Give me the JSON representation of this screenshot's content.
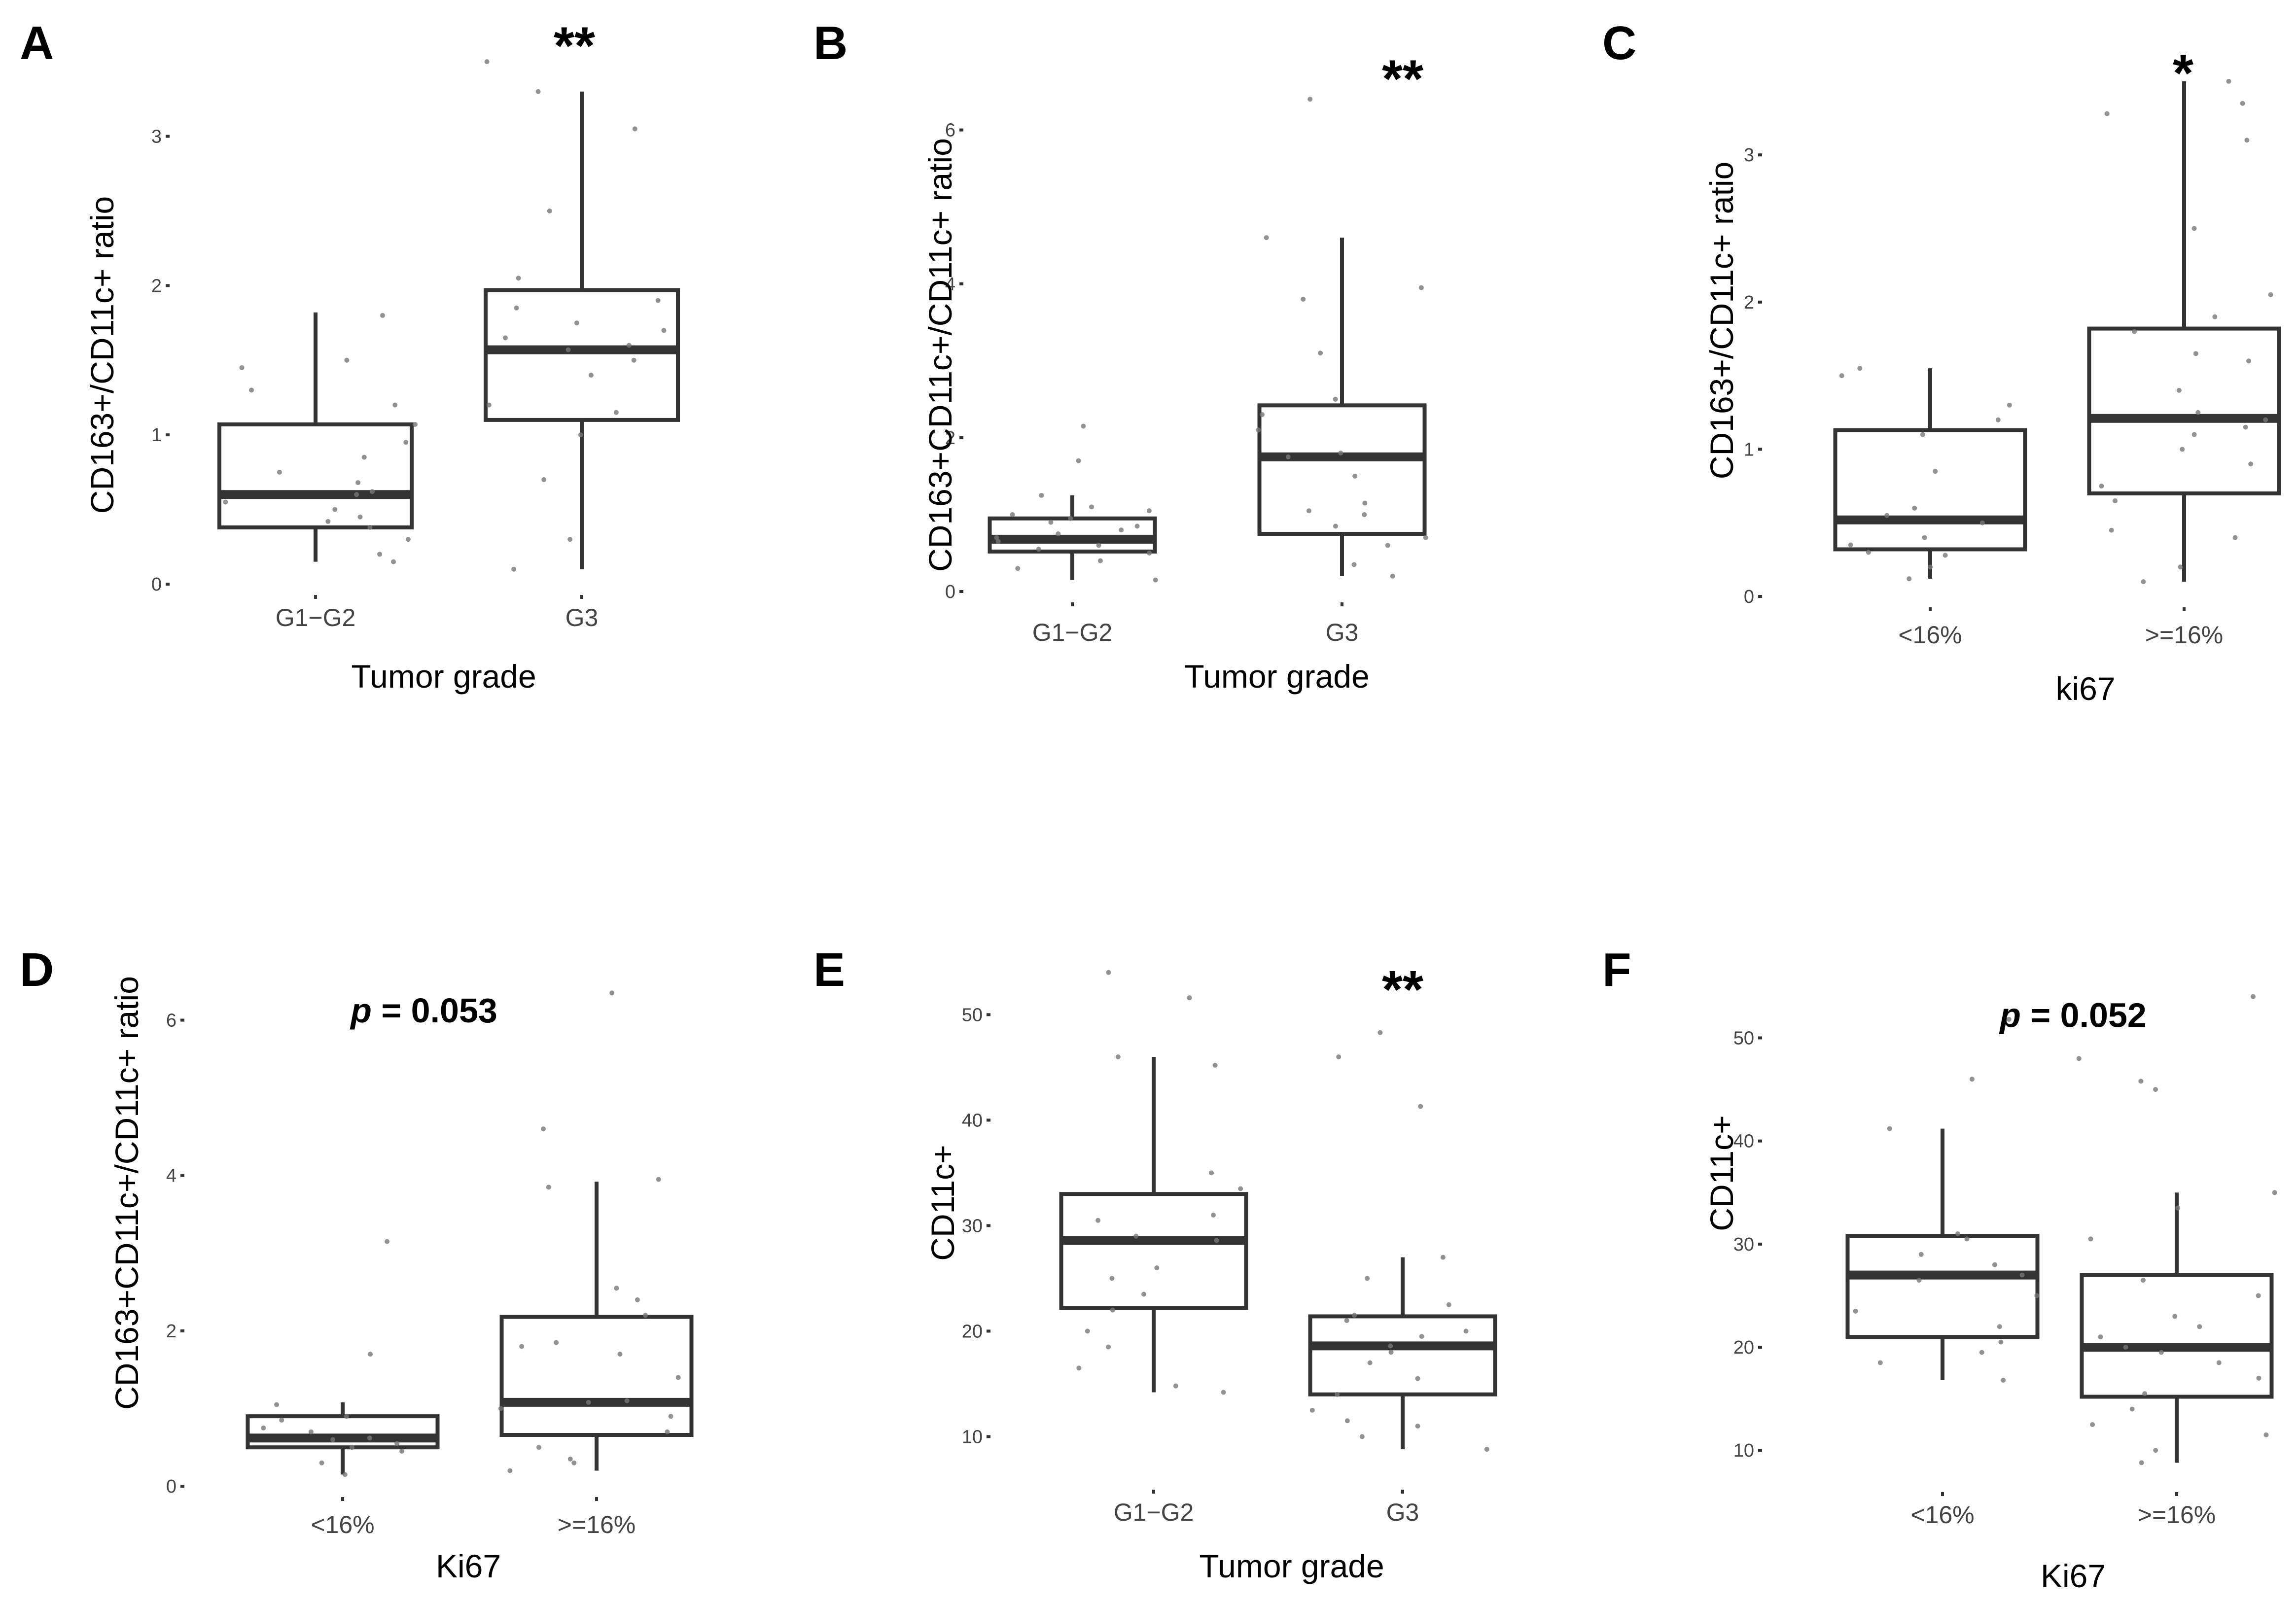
{
  "chart_data": [
    {
      "id": "A",
      "type": "boxplot",
      "panel_label": "A",
      "significance": "**",
      "significance_p": null,
      "ylabel": "CD163+/CD11c+ ratio",
      "xlabel": "Tumor grade",
      "ylim": [
        0,
        3.55
      ],
      "yticks": [
        0,
        1,
        2,
        3
      ],
      "sig_y": 3.65,
      "categories": [
        "G1−G2",
        "G3"
      ],
      "groups": [
        {
          "name": "G1−G2",
          "min": 0.15,
          "q1": 0.38,
          "median": 0.6,
          "q3": 1.07,
          "max": 1.82,
          "points": [
            0.15,
            0.2,
            0.3,
            0.38,
            0.42,
            0.45,
            0.5,
            0.55,
            0.6,
            0.62,
            0.68,
            0.75,
            0.85,
            0.95,
            1.07,
            1.2,
            1.3,
            1.45,
            1.5,
            1.8
          ]
        },
        {
          "name": "G3",
          "min": 0.1,
          "q1": 1.1,
          "median": 1.57,
          "q3": 1.97,
          "max": 3.3,
          "points": [
            0.1,
            0.3,
            0.7,
            1.0,
            1.15,
            1.2,
            1.4,
            1.5,
            1.57,
            1.6,
            1.65,
            1.7,
            1.75,
            1.85,
            1.9,
            2.05,
            2.5,
            3.05,
            3.3,
            3.5
          ]
        }
      ]
    },
    {
      "id": "B",
      "type": "boxplot",
      "panel_label": "B",
      "significance": "**",
      "significance_p": null,
      "ylabel": "CD163+CD11c+/CD11c+ ratio",
      "xlabel": "Tumor grade",
      "ylim": [
        0,
        6.6
      ],
      "yticks": [
        0,
        2,
        4,
        6
      ],
      "sig_y": 6.75,
      "categories": [
        "G1−G2",
        "G3"
      ],
      "groups": [
        {
          "name": "G1−G2",
          "min": 0.15,
          "q1": 0.52,
          "median": 0.68,
          "q3": 0.95,
          "max": 1.25,
          "points": [
            0.15,
            0.3,
            0.4,
            0.5,
            0.55,
            0.6,
            0.65,
            0.7,
            0.75,
            0.8,
            0.85,
            0.9,
            0.95,
            1.0,
            1.05,
            1.1,
            1.25,
            1.7,
            2.15
          ]
        },
        {
          "name": "G3",
          "min": 0.2,
          "q1": 0.75,
          "median": 1.75,
          "q3": 2.42,
          "max": 4.6,
          "points": [
            0.2,
            0.35,
            0.6,
            0.7,
            0.85,
            1.0,
            1.05,
            1.15,
            1.5,
            1.75,
            1.8,
            2.1,
            2.3,
            2.5,
            3.1,
            3.8,
            3.95,
            4.6,
            6.4
          ]
        }
      ]
    },
    {
      "id": "C",
      "type": "boxplot",
      "panel_label": "C",
      "significance": "*",
      "significance_p": null,
      "ylabel": "CD163+/CD11c+ ratio",
      "xlabel": "ki67",
      "ylim": [
        0,
        3.55
      ],
      "yticks": [
        0,
        1,
        2,
        3
      ],
      "sig_y": 3.6,
      "categories": [
        "<16%",
        ">=16%"
      ],
      "groups": [
        {
          "name": "<16%",
          "min": 0.12,
          "q1": 0.32,
          "median": 0.52,
          "q3": 1.13,
          "max": 1.55,
          "points": [
            0.12,
            0.2,
            0.28,
            0.3,
            0.35,
            0.4,
            0.5,
            0.55,
            0.6,
            0.85,
            1.1,
            1.2,
            1.3,
            1.5,
            1.55
          ]
        },
        {
          "name": ">=16%",
          "min": 0.1,
          "q1": 0.7,
          "median": 1.21,
          "q3": 1.82,
          "max": 3.5,
          "points": [
            0.1,
            0.2,
            0.4,
            0.45,
            0.65,
            0.75,
            0.9,
            1.0,
            1.1,
            1.15,
            1.2,
            1.25,
            1.4,
            1.6,
            1.65,
            1.8,
            1.9,
            2.05,
            2.5,
            3.1,
            3.28,
            3.35,
            3.5
          ]
        }
      ]
    },
    {
      "id": "D",
      "type": "boxplot",
      "panel_label": "D",
      "significance": null,
      "significance_p": "p = 0.053",
      "significance_p_italic": "p",
      "significance_p_rest": " = 0.053",
      "ylabel": "CD163+CD11c+/CD11c+ ratio",
      "xlabel": "Ki67",
      "ylim": [
        0,
        6.6
      ],
      "yticks": [
        0,
        2,
        4,
        6
      ],
      "sig_y": 6.1,
      "categories": [
        "<16%",
        ">=16%"
      ],
      "groups": [
        {
          "name": "<16%",
          "min": 0.15,
          "q1": 0.5,
          "median": 0.62,
          "q3": 0.9,
          "max": 1.08,
          "points": [
            0.15,
            0.3,
            0.45,
            0.5,
            0.55,
            0.6,
            0.62,
            0.7,
            0.75,
            0.85,
            0.9,
            1.05,
            1.7,
            3.15
          ]
        },
        {
          "name": ">=16%",
          "min": 0.2,
          "q1": 0.66,
          "median": 1.08,
          "q3": 2.18,
          "max": 3.92,
          "points": [
            0.2,
            0.3,
            0.35,
            0.5,
            0.7,
            0.9,
            1.0,
            1.08,
            1.1,
            1.4,
            1.7,
            1.8,
            1.85,
            2.2,
            2.4,
            2.55,
            3.85,
            3.95,
            4.6,
            6.35
          ]
        }
      ]
    },
    {
      "id": "E",
      "type": "boxplot",
      "panel_label": "E",
      "significance": "**",
      "significance_p": null,
      "ylabel": "CD11c+",
      "xlabel": "Tumor grade",
      "ylim": [
        6,
        56
      ],
      "yticks": [
        10,
        20,
        30,
        40,
        50
      ],
      "sig_y": 53,
      "categories": [
        "G1−G2",
        "G3"
      ],
      "groups": [
        {
          "name": "G1−G2",
          "min": 14.2,
          "q1": 22.2,
          "median": 28.6,
          "q3": 33.0,
          "max": 46.0,
          "points": [
            14.2,
            14.8,
            16.5,
            18.5,
            20.0,
            22.0,
            23.5,
            25.0,
            26.0,
            28.6,
            29.0,
            30.5,
            31.0,
            33.5,
            35.0,
            45.2,
            46.0,
            51.6,
            54.0
          ]
        },
        {
          "name": "G3",
          "min": 8.8,
          "q1": 14.0,
          "median": 18.6,
          "q3": 21.4,
          "max": 27.0,
          "points": [
            8.8,
            10.0,
            11.0,
            11.5,
            12.5,
            14.0,
            15.5,
            17.0,
            18.0,
            18.6,
            19.5,
            20.0,
            21.0,
            21.5,
            22.5,
            25.0,
            27.0,
            41.3,
            46.0,
            48.3
          ]
        }
      ]
    },
    {
      "id": "F",
      "type": "boxplot",
      "panel_label": "F",
      "significance": null,
      "significance_p": "p = 0.052",
      "significance_p_italic": "p",
      "significance_p_rest": " = 0.052",
      "ylabel": "CD11c+",
      "xlabel": "Ki67",
      "ylim": [
        7,
        56
      ],
      "yticks": [
        10,
        20,
        30,
        40,
        50
      ],
      "sig_y": 52,
      "categories": [
        "<16%",
        ">=16%"
      ],
      "groups": [
        {
          "name": "<16%",
          "min": 16.8,
          "q1": 21.0,
          "median": 27.0,
          "q3": 30.8,
          "max": 41.2,
          "points": [
            16.8,
            18.5,
            19.5,
            20.5,
            22.0,
            23.5,
            25.0,
            26.5,
            27.0,
            28.0,
            29.0,
            30.5,
            31.0,
            41.2,
            46.0,
            51.8
          ]
        },
        {
          "name": ">=16%",
          "min": 8.8,
          "q1": 15.2,
          "median": 20.0,
          "q3": 27.0,
          "max": 35.0,
          "points": [
            8.8,
            10.0,
            11.5,
            12.5,
            14.0,
            15.5,
            17.0,
            18.5,
            19.5,
            20.0,
            21.0,
            22.0,
            23.0,
            25.0,
            26.5,
            30.5,
            33.5,
            35.0,
            45.0,
            45.8,
            48.0,
            54.0
          ]
        }
      ]
    }
  ]
}
